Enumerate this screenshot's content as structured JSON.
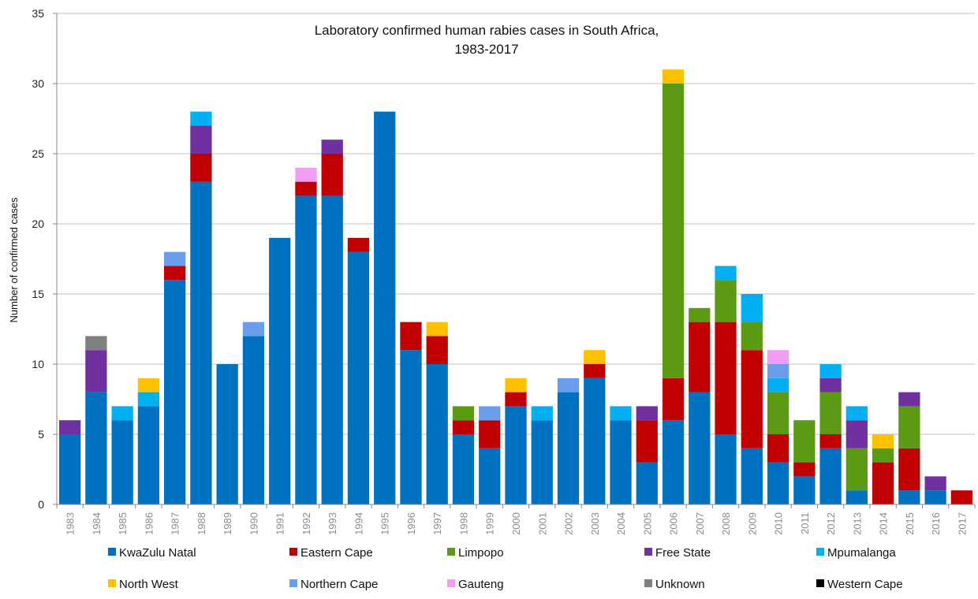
{
  "chart_data": {
    "type": "bar",
    "stacked": true,
    "title_lines": [
      "Laboratory confirmed human rabies cases in South Africa,",
      "1983-2017"
    ],
    "xlabel": "",
    "ylabel": "Number of confirmed cases",
    "ylim": [
      0,
      35
    ],
    "yticks": [
      0,
      5,
      10,
      15,
      20,
      25,
      30,
      35
    ],
    "grid": "horizontal",
    "legend_position": "bottom",
    "categories": [
      "1983",
      "1984",
      "1985",
      "1986",
      "1987",
      "1988",
      "1989",
      "1990",
      "1991",
      "1992",
      "1993",
      "1994",
      "1995",
      "1996",
      "1997",
      "1998",
      "1999",
      "2000",
      "2001",
      "2002",
      "2003",
      "2004",
      "2005",
      "2006",
      "2007",
      "2008",
      "2009",
      "2010",
      "2011",
      "2012",
      "2013",
      "2014",
      "2015",
      "2016",
      "2017"
    ],
    "series": [
      {
        "name": "KwaZulu Natal",
        "color": "#0070C0",
        "values": [
          5,
          8,
          6,
          7,
          16,
          23,
          10,
          12,
          19,
          22,
          22,
          18,
          28,
          11,
          10,
          5,
          4,
          7,
          6,
          8,
          9,
          6,
          3,
          6,
          8,
          5,
          4,
          3,
          2,
          4,
          1,
          0,
          1,
          1,
          0
        ]
      },
      {
        "name": "Eastern Cape",
        "color": "#C00000",
        "values": [
          0,
          0,
          0,
          0,
          1,
          2,
          0,
          0,
          0,
          1,
          3,
          1,
          0,
          2,
          2,
          1,
          2,
          1,
          0,
          0,
          1,
          0,
          3,
          3,
          5,
          8,
          7,
          2,
          1,
          1,
          0,
          3,
          3,
          0,
          1
        ]
      },
      {
        "name": "Limpopo",
        "color": "#5B9A12",
        "values": [
          0,
          0,
          0,
          0,
          0,
          0,
          0,
          0,
          0,
          0,
          0,
          0,
          0,
          0,
          0,
          1,
          0,
          0,
          0,
          0,
          0,
          0,
          0,
          21,
          1,
          3,
          2,
          3,
          3,
          3,
          3,
          1,
          3,
          0,
          0
        ]
      },
      {
        "name": "Free State",
        "color": "#7030A0",
        "values": [
          1,
          3,
          0,
          0,
          0,
          2,
          0,
          0,
          0,
          0,
          1,
          0,
          0,
          0,
          0,
          0,
          0,
          0,
          0,
          0,
          0,
          0,
          1,
          0,
          0,
          0,
          0,
          0,
          0,
          1,
          2,
          0,
          1,
          1,
          0
        ]
      },
      {
        "name": "Mpumalanga",
        "color": "#00B0F0",
        "values": [
          0,
          0,
          1,
          1,
          0,
          1,
          0,
          0,
          0,
          0,
          0,
          0,
          0,
          0,
          0,
          0,
          0,
          0,
          1,
          0,
          0,
          1,
          0,
          0,
          0,
          1,
          2,
          1,
          0,
          1,
          1,
          0,
          0,
          0,
          0
        ]
      },
      {
        "name": "North West",
        "color": "#FFC000",
        "values": [
          0,
          0,
          0,
          1,
          0,
          0,
          0,
          0,
          0,
          0,
          0,
          0,
          0,
          0,
          1,
          0,
          0,
          1,
          0,
          0,
          1,
          0,
          0,
          1,
          0,
          0,
          0,
          0,
          0,
          0,
          0,
          1,
          0,
          0,
          0
        ]
      },
      {
        "name": "Northern Cape",
        "color": "#6A9EEA",
        "values": [
          0,
          0,
          0,
          0,
          1,
          0,
          0,
          1,
          0,
          0,
          0,
          0,
          0,
          0,
          0,
          0,
          1,
          0,
          0,
          1,
          0,
          0,
          0,
          0,
          0,
          0,
          0,
          1,
          0,
          0,
          0,
          0,
          0,
          0,
          0
        ]
      },
      {
        "name": "Gauteng",
        "color": "#F19EF2",
        "values": [
          0,
          0,
          0,
          0,
          0,
          0,
          0,
          0,
          0,
          1,
          0,
          0,
          0,
          0,
          0,
          0,
          0,
          0,
          0,
          0,
          0,
          0,
          0,
          0,
          0,
          0,
          0,
          1,
          0,
          0,
          0,
          0,
          0,
          0,
          0
        ]
      },
      {
        "name": "Unknown",
        "color": "#808080",
        "values": [
          0,
          1,
          0,
          0,
          0,
          0,
          0,
          0,
          0,
          0,
          0,
          0,
          0,
          0,
          0,
          0,
          0,
          0,
          0,
          0,
          0,
          0,
          0,
          0,
          0,
          0,
          0,
          0,
          0,
          0,
          0,
          0,
          0,
          0,
          0
        ]
      },
      {
        "name": "Western Cape",
        "color": "#000000",
        "values": [
          0,
          0,
          0,
          0,
          0,
          0,
          0,
          0,
          0,
          0,
          0,
          0,
          0,
          0,
          0,
          0,
          0,
          0,
          0,
          0,
          0,
          0,
          0,
          0,
          0,
          0,
          0,
          0,
          0,
          0,
          0,
          0,
          0,
          0,
          0
        ]
      }
    ]
  }
}
